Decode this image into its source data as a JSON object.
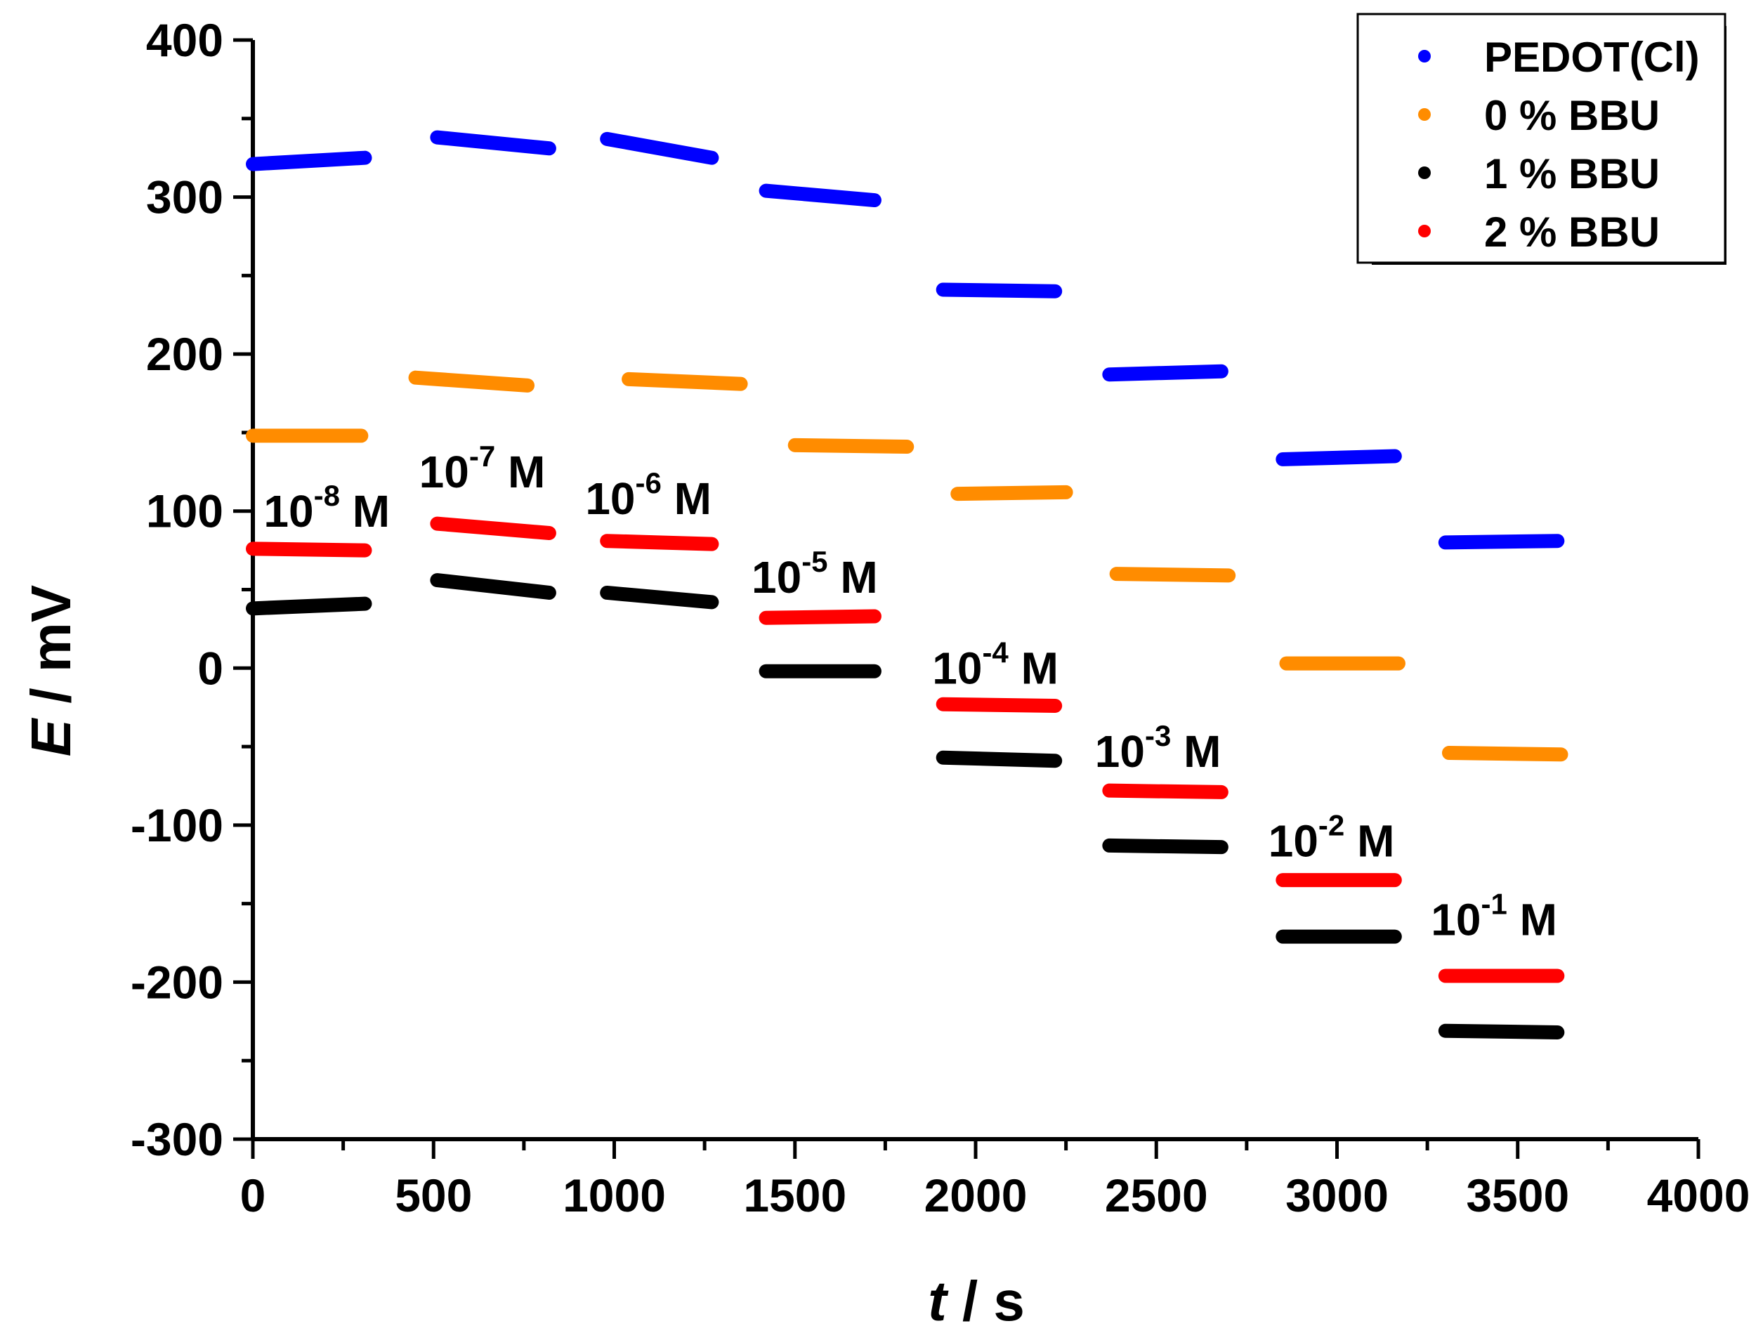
{
  "chart_data": {
    "type": "scatter",
    "title": "",
    "xlabel": {
      "italic": "t",
      "rest": " / s"
    },
    "ylabel": {
      "italic": "E",
      "rest": " / mV"
    },
    "xlim": [
      0,
      4000
    ],
    "ylim": [
      -300,
      400
    ],
    "xticks": [
      "0",
      "500",
      "1000",
      "1500",
      "2000",
      "2500",
      "3000",
      "3500",
      "4000"
    ],
    "yticks": [
      "400",
      "300",
      "200",
      "100",
      "0",
      "-100",
      "-200",
      "-300"
    ],
    "xtick_values": [
      0,
      500,
      1000,
      1500,
      2000,
      2500,
      3000,
      3500,
      4000
    ],
    "ytick_values": [
      400,
      300,
      200,
      100,
      0,
      -100,
      -200,
      -300
    ],
    "legend_position": "top-right",
    "series": [
      {
        "name": "PEDOT(Cl)",
        "color": "#0000ff",
        "segments": [
          {
            "t": [
              0,
              310
            ],
            "E": [
              321,
              325
            ]
          },
          {
            "t": [
              510,
              820
            ],
            "E": [
              338,
              331
            ]
          },
          {
            "t": [
              980,
              1270
            ],
            "E": [
              337,
              325
            ]
          },
          {
            "t": [
              1420,
              1720
            ],
            "E": [
              304,
              298
            ]
          },
          {
            "t": [
              1910,
              2220
            ],
            "E": [
              241,
              240
            ]
          },
          {
            "t": [
              2370,
              2680
            ],
            "E": [
              187,
              189
            ]
          },
          {
            "t": [
              2850,
              3160
            ],
            "E": [
              133,
              135
            ]
          },
          {
            "t": [
              3300,
              3610
            ],
            "E": [
              80,
              81
            ]
          }
        ]
      },
      {
        "name": "0 % BBU",
        "color": "#ff8c00",
        "segments": [
          {
            "t": [
              0,
              300
            ],
            "E": [
              148,
              148
            ]
          },
          {
            "t": [
              450,
              760
            ],
            "E": [
              185,
              180
            ]
          },
          {
            "t": [
              1040,
              1350
            ],
            "E": [
              184,
              181
            ]
          },
          {
            "t": [
              1500,
              1810
            ],
            "E": [
              142,
              141
            ]
          },
          {
            "t": [
              1950,
              2250
            ],
            "E": [
              111,
              112
            ]
          },
          {
            "t": [
              2390,
              2700
            ],
            "E": [
              60,
              59
            ]
          },
          {
            "t": [
              2860,
              3170
            ],
            "E": [
              3,
              3
            ]
          },
          {
            "t": [
              3310,
              3620
            ],
            "E": [
              -54,
              -55
            ]
          }
        ]
      },
      {
        "name": "1 % BBU",
        "color": "#000000",
        "segments": [
          {
            "t": [
              0,
              310
            ],
            "E": [
              38,
              41
            ]
          },
          {
            "t": [
              510,
              820
            ],
            "E": [
              56,
              48
            ]
          },
          {
            "t": [
              980,
              1270
            ],
            "E": [
              48,
              42
            ]
          },
          {
            "t": [
              1420,
              1720
            ],
            "E": [
              -2,
              -2
            ]
          },
          {
            "t": [
              1910,
              2220
            ],
            "E": [
              -57,
              -59
            ]
          },
          {
            "t": [
              2370,
              2680
            ],
            "E": [
              -113,
              -114
            ]
          },
          {
            "t": [
              2850,
              3160
            ],
            "E": [
              -171,
              -171
            ]
          },
          {
            "t": [
              3300,
              3610
            ],
            "E": [
              -231,
              -232
            ]
          }
        ]
      },
      {
        "name": "2 % BBU",
        "color": "#ff0000",
        "segments": [
          {
            "t": [
              0,
              310
            ],
            "E": [
              76,
              75
            ]
          },
          {
            "t": [
              510,
              820
            ],
            "E": [
              92,
              86
            ]
          },
          {
            "t": [
              980,
              1270
            ],
            "E": [
              81,
              79
            ]
          },
          {
            "t": [
              1420,
              1720
            ],
            "E": [
              32,
              33
            ]
          },
          {
            "t": [
              1910,
              2220
            ],
            "E": [
              -23,
              -24
            ]
          },
          {
            "t": [
              2370,
              2680
            ],
            "E": [
              -78,
              -79
            ]
          },
          {
            "t": [
              2850,
              3160
            ],
            "E": [
              -135,
              -135
            ]
          },
          {
            "t": [
              3300,
              3610
            ],
            "E": [
              -196,
              -196
            ]
          }
        ]
      }
    ],
    "annotations": [
      {
        "base": "10",
        "exp": "-8",
        "unit": " M",
        "t": 30,
        "E": 90
      },
      {
        "base": "10",
        "exp": "-7",
        "unit": " M",
        "t": 460,
        "E": 115
      },
      {
        "base": "10",
        "exp": "-6",
        "unit": " M",
        "t": 920,
        "E": 98
      },
      {
        "base": "10",
        "exp": "-5",
        "unit": " M",
        "t": 1380,
        "E": 48
      },
      {
        "base": "10",
        "exp": "-4",
        "unit": " M",
        "t": 1880,
        "E": -10
      },
      {
        "base": "10",
        "exp": "-3",
        "unit": " M",
        "t": 2330,
        "E": -63
      },
      {
        "base": "10",
        "exp": "-2",
        "unit": " M",
        "t": 2810,
        "E": -120
      },
      {
        "base": "10",
        "exp": "-1",
        "unit": " M",
        "t": 3260,
        "E": -170
      }
    ]
  }
}
